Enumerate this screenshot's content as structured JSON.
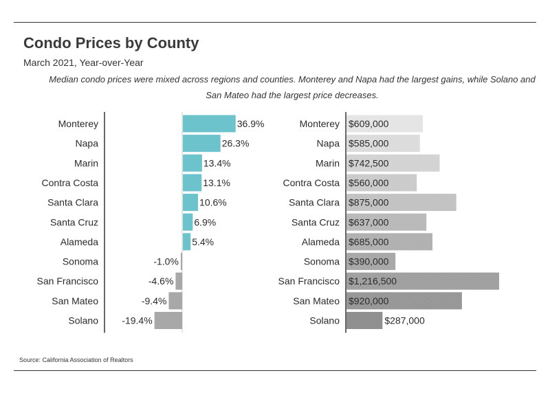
{
  "title": "Condo Prices by County",
  "subtitle": "March 2021, Year-over-Year",
  "description": "Median condo prices were mixed across regions and counties. Monterey and Napa had the largest gains, while Solano and San Mateo had the largest price decreases.",
  "source": "Source:  California Association of Realtors",
  "colors": {
    "positive": "#6cc3cc",
    "negative": "#a8a8a8",
    "axis": "#333333",
    "price_light": "#e4e4e4",
    "price_dark": "#8c8c8c"
  },
  "chart_data": [
    {
      "type": "bar",
      "orientation": "horizontal",
      "name": "Year-over-Year Change",
      "unit": "%",
      "categories": [
        "Monterey",
        "Napa",
        "Marin",
        "Contra Costa",
        "Santa Clara",
        "Santa Cruz",
        "Alameda",
        "Sonoma",
        "San Francisco",
        "San Mateo",
        "Solano"
      ],
      "values": [
        36.9,
        26.3,
        13.4,
        13.1,
        10.6,
        6.9,
        5.4,
        -1.0,
        -4.6,
        -9.4,
        -19.4
      ],
      "labels": [
        "36.9%",
        "26.3%",
        "13.4%",
        "13.1%",
        "10.6%",
        "6.9%",
        "5.4%",
        "-1.0%",
        "-4.6%",
        "-9.4%",
        "-19.4%"
      ],
      "xlim": [
        -50,
        45
      ]
    },
    {
      "type": "bar",
      "orientation": "horizontal",
      "name": "Median Price",
      "unit": "$",
      "categories": [
        "Monterey",
        "Napa",
        "Marin",
        "Contra Costa",
        "Santa Clara",
        "Santa Cruz",
        "Alameda",
        "Sonoma",
        "San Francisco",
        "San Mateo",
        "Solano"
      ],
      "values": [
        609000,
        585000,
        742500,
        560000,
        875000,
        637000,
        685000,
        390000,
        1216500,
        920000,
        287000
      ],
      "labels": [
        "$609,000",
        "$585,000",
        "$742,500",
        "$560,000",
        "$875,000",
        "$637,000",
        "$685,000",
        "$390,000",
        "$1,216,500",
        "$920,000",
        "$287,000"
      ],
      "xlim": [
        0,
        1216500
      ]
    }
  ]
}
